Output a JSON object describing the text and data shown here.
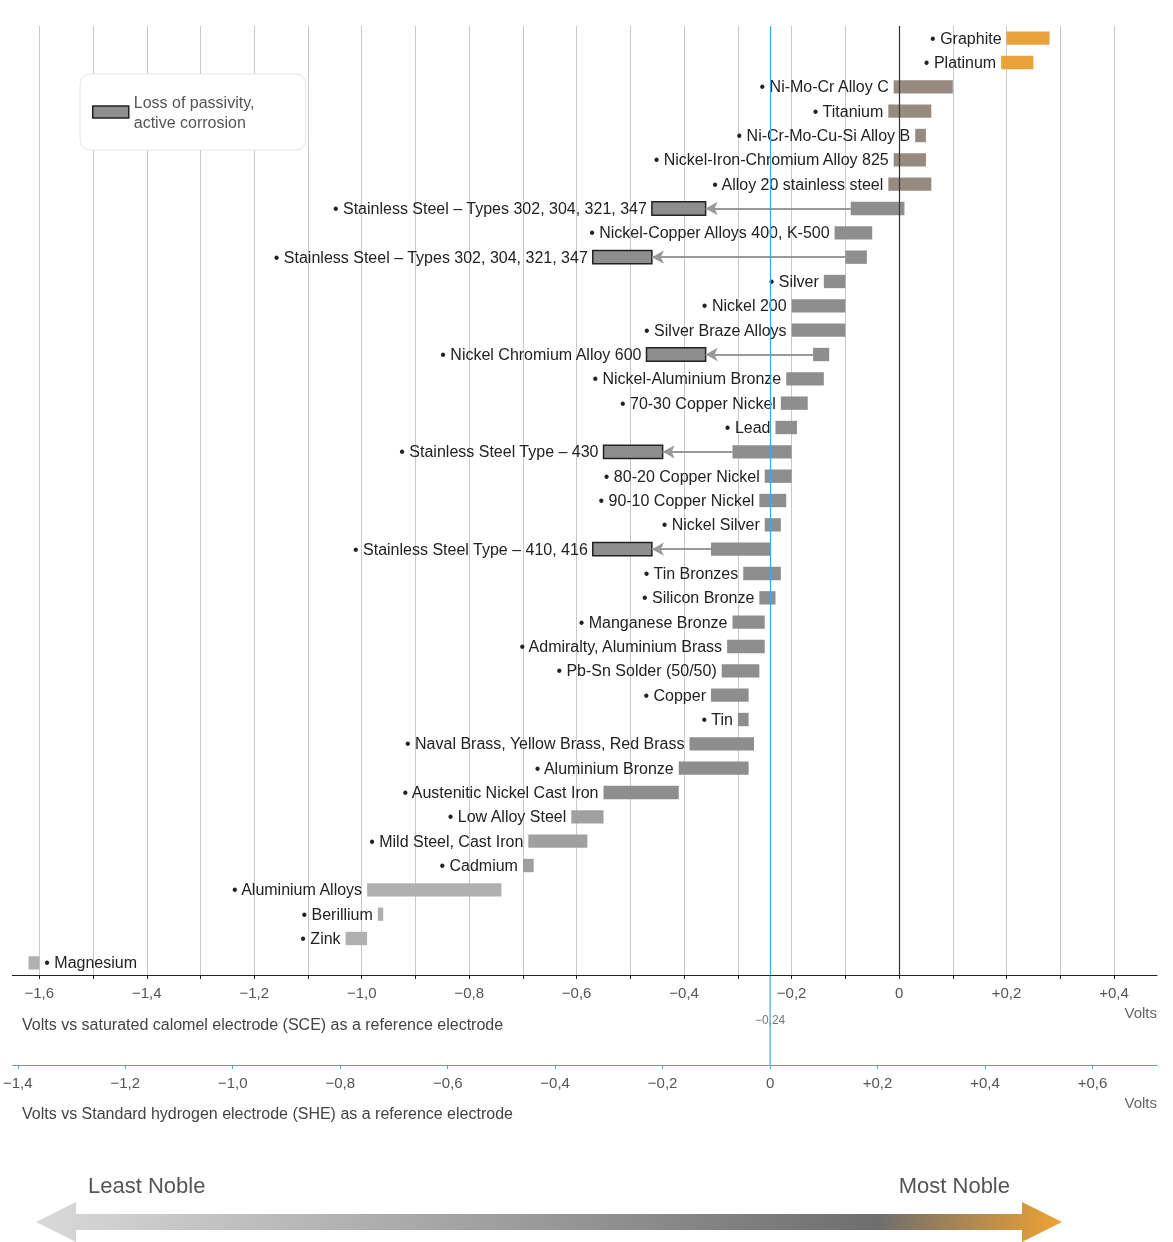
{
  "chart_data": {
    "type": "bar",
    "orientation": "horizontal",
    "categories": [
      "• Graphite",
      "• Platinum",
      "• Ni-Mo-Cr Alloy C",
      "• Titanium",
      "• Ni-Cr-Mo-Cu-Si Alloy B",
      "• Nickel-Iron-Chromium Alloy 825",
      "• Alloy 20 stainless steel",
      "• Stainless Steel – Types 302, 304, 321, 347",
      "• Nickel-Copper Alloys 400, K-500",
      "• Stainless Steel – Types 302, 304, 321, 347",
      "• Silver",
      "• Nickel 200",
      "• Silver Braze Alloys",
      "• Nickel Chromium Alloy 600",
      "• Nickel-Aluminium Bronze",
      "• 70-30 Copper Nickel",
      "• Lead",
      "• Stainless Steel Type – 430",
      "• 80-20 Copper Nickel",
      "• 90-10 Copper Nickel",
      "• Nickel Silver",
      "• Stainless Steel Type – 410, 416",
      "• Tin Bronzes",
      "• Silicon Bronze",
      "• Manganese Bronze",
      "• Admiralty, Aluminium Brass",
      "• Pb-Sn Solder (50/50)",
      "• Copper",
      "• Tin",
      "• Naval Brass, Yellow Brass, Red Brass",
      "• Aluminium Bronze",
      "• Austenitic Nickel Cast Iron",
      "• Low Alloy Steel",
      "• Mild Steel, Cast Iron",
      "• Cadmium",
      "• Aluminium Alloys",
      "• Berillium",
      "• Zink",
      "• Magnesium"
    ],
    "series": [
      {
        "colors": [
          "#e9a23b",
          "#e9a23b",
          "#978b80",
          "#978b80",
          "#978b80",
          "#978b80",
          "#978b80",
          "#8e8e8e",
          "#8e8e8e",
          "#8e8e8e",
          "#8e8e8e",
          "#8e8e8e",
          "#8e8e8e",
          "#8e8e8e",
          "#8e8e8e",
          "#8e8e8e",
          "#8e8e8e",
          "#8e8e8e",
          "#8e8e8e",
          "#8e8e8e",
          "#8e8e8e",
          "#8e8e8e",
          "#8e8e8e",
          "#8e8e8e",
          "#8e8e8e",
          "#8e8e8e",
          "#8e8e8e",
          "#8e8e8e",
          "#8e8e8e",
          "#8e8e8e",
          "#8e8e8e",
          "#8e8e8e",
          "#a0a0a0",
          "#a0a0a0",
          "#a0a0a0",
          "#b0b0b0",
          "#b0b0b0",
          "#b0b0b0",
          "#b0b0b0"
        ],
        "base": [
          0.2,
          0.19,
          -0.01,
          -0.02,
          0.03,
          -0.01,
          -0.02,
          -0.09,
          -0.12,
          -0.1,
          -0.14,
          -0.2,
          -0.2,
          -0.16,
          -0.21,
          -0.22,
          -0.23,
          -0.31,
          -0.25,
          -0.26,
          -0.25,
          -0.35,
          -0.29,
          -0.26,
          -0.31,
          -0.32,
          -0.33,
          -0.35,
          -0.3,
          -0.39,
          -0.41,
          -0.55,
          -0.61,
          -0.69,
          -0.7,
          -0.99,
          -0.97,
          -1.03,
          -1.62
        ],
        "values": [
          0.08,
          0.06,
          0.11,
          0.08,
          0.02,
          0.06,
          0.08,
          0.1,
          0.07,
          0.04,
          0.04,
          0.1,
          0.1,
          0.03,
          0.07,
          0.05,
          0.04,
          0.11,
          0.05,
          0.05,
          0.03,
          0.11,
          0.07,
          0.03,
          0.06,
          0.07,
          0.07,
          0.07,
          0.02,
          0.12,
          0.13,
          0.14,
          0.06,
          0.11,
          0.02,
          0.25,
          0.01,
          0.04,
          0.02
        ]
      },
      {
        "name": "Loss of passivity, active corrosion",
        "color": "#8e8e8e",
        "base": [
          null,
          null,
          null,
          null,
          null,
          null,
          null,
          -0.46,
          null,
          -0.57,
          null,
          null,
          null,
          -0.47,
          null,
          null,
          null,
          -0.55,
          null,
          null,
          null,
          -0.57,
          null,
          null,
          null,
          null,
          null,
          null,
          null,
          null,
          null,
          null,
          null,
          null,
          null,
          null,
          null,
          null,
          null
        ],
        "values": [
          null,
          null,
          null,
          null,
          null,
          null,
          null,
          0.1,
          null,
          0.11,
          null,
          null,
          null,
          0.11,
          null,
          null,
          null,
          0.11,
          null,
          null,
          null,
          0.11,
          null,
          null,
          null,
          null,
          null,
          null,
          null,
          null,
          null,
          null,
          null,
          null,
          null,
          null,
          null,
          null,
          null
        ]
      }
    ],
    "xlim": [
      -1.65,
      0.48
    ],
    "xticks": [
      {
        "value": -1.6,
        "label": "−1,6"
      },
      {
        "value": -1.5,
        "label": null
      },
      {
        "value": -1.4,
        "label": "−1,4"
      },
      {
        "value": -1.3,
        "label": null
      },
      {
        "value": -1.2,
        "label": "−1,2"
      },
      {
        "value": -1.1,
        "label": null
      },
      {
        "value": -1.0,
        "label": "−1,0"
      },
      {
        "value": -0.9,
        "label": null
      },
      {
        "value": -0.8,
        "label": "−0,8"
      },
      {
        "value": -0.7,
        "label": null
      },
      {
        "value": -0.6,
        "label": "−0,6"
      },
      {
        "value": -0.5,
        "label": null
      },
      {
        "value": -0.4,
        "label": "−0,4"
      },
      {
        "value": -0.3,
        "label": null
      },
      {
        "value": -0.2,
        "label": "−0,2"
      },
      {
        "value": -0.1,
        "label": null
      },
      0,
      {
        "value": 0.1,
        "label": null
      },
      {
        "value": 0.2,
        "label": "+0,2"
      },
      {
        "value": 0.3,
        "label": null
      },
      {
        "value": 0.4,
        "label": "+0,4"
      }
    ],
    "x2lim": [
      -1.41,
      0.72
    ],
    "x2ticks": [
      {
        "value": -1.4,
        "label": "−1,4"
      },
      {
        "value": -1.2,
        "label": "−1,2"
      },
      {
        "value": -1.0,
        "label": "−1,0"
      },
      {
        "value": -0.8,
        "label": "−0,8"
      },
      {
        "value": -0.6,
        "label": "−0,6"
      },
      {
        "value": -0.4,
        "label": "−0,4"
      },
      {
        "value": -0.2,
        "label": "−0,2"
      },
      0,
      {
        "value": 0.2,
        "label": "+0,2"
      },
      {
        "value": 0.4,
        "label": "+0,4"
      },
      {
        "value": 0.6,
        "label": "+0,6"
      }
    ],
    "xlabel": "Volts",
    "x2label": "Volts",
    "grid": "x",
    "legend": "top left",
    "ref_lines": [
      {
        "axis": "x",
        "value": -0.24,
        "label": "−0,24",
        "color": "#3fa9e0"
      },
      {
        "axis": "x",
        "value": 0,
        "color": "#333333"
      }
    ],
    "annotations": [
      "Volts vs saturated calomel electrode (SCE) as a reference electrode",
      "Volts vs Standard hydrogen electrode (SHE) as a reference electrode",
      "Least Noble",
      "Most Noble"
    ]
  }
}
